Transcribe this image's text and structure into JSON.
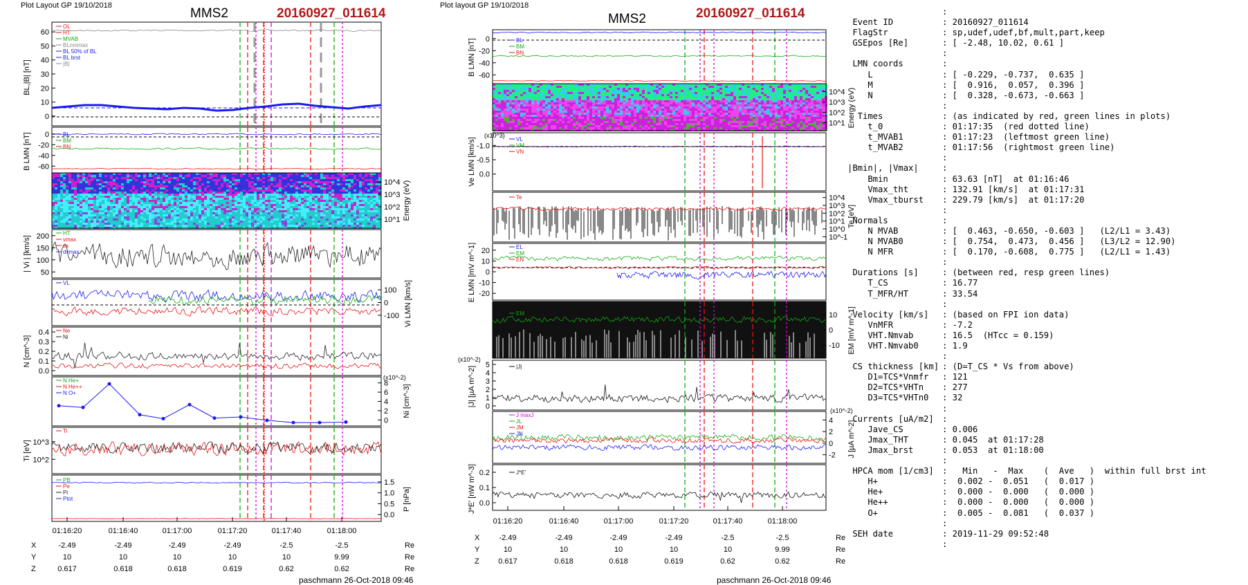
{
  "header": {
    "left_plot_label": "Plot Layout GP 19/10/2018",
    "right_plot_label": "Plot layout GP 19/10/2018",
    "spacecraft": "MMS2",
    "event": "20160927_011614",
    "footer": "paschmann 26-Oct-2018 09:46"
  },
  "colors": {
    "event_red": "#b01818",
    "green": "#11aa11",
    "blue": "#1a1aee",
    "red": "#ee1111",
    "magenta": "#dd00dd"
  },
  "time_axis": {
    "left_ticks": [
      "01:16:20",
      "01:16:40",
      "01:17:00",
      "01:17:20",
      "01:17:40",
      "01:18:00"
    ],
    "right_ticks": [
      "01:16:20",
      "01:16:40",
      "01:17:00",
      "01:17:20",
      "01:17:40",
      "01:18:00"
    ]
  },
  "position_table": {
    "labels": [
      "X",
      "Y",
      "Z"
    ],
    "unit": "Re",
    "X": [
      "-2.49",
      "-2.49",
      "-2.49",
      "-2.49",
      "-2.5",
      "-2.5"
    ],
    "Y": [
      "10",
      "10",
      "10",
      "10",
      "10",
      "9.99"
    ],
    "Z": [
      "0.617",
      "0.618",
      "0.618",
      "0.619",
      "0.62",
      "0.62"
    ]
  },
  "chart_data": [
    {
      "type": "line",
      "panel": "B_L, |B|",
      "ylabel": "BL,|B| [nT]",
      "yticks": [
        "0",
        "10",
        "20",
        "30",
        "40",
        "50",
        "60"
      ],
      "legend": [
        "OL",
        "HT",
        "MVAB",
        "BLmnmax",
        "BL 50% of BL",
        "BL brst",
        "|B|"
      ],
      "series": [
        {
          "name": "|B|",
          "values": [
            63,
            63.5,
            63,
            63.3,
            63,
            62.8,
            63.2
          ]
        },
        {
          "name": "BL",
          "values": [
            8,
            9.5,
            10.5,
            8,
            6.5,
            5,
            11.5,
            7,
            9
          ]
        }
      ]
    },
    {
      "type": "line",
      "panel": "B_LMN",
      "ylabel": "B LMN [nT]",
      "yticks": [
        "0",
        "-20",
        "-40",
        "-60"
      ],
      "legend": [
        "BL",
        "BM",
        "BN"
      ],
      "series": [
        {
          "name": "BL",
          "values": [
            8,
            8,
            7,
            8,
            8
          ]
        },
        {
          "name": "BM",
          "values": [
            -20,
            -21,
            -19,
            -20,
            -20
          ]
        },
        {
          "name": "BN",
          "values": [
            -60,
            -61,
            -60,
            -59,
            -60
          ]
        }
      ]
    },
    {
      "type": "heatmap",
      "panel": "Ion energy spectrogram",
      "ylabel": "Energy (eV)",
      "yticks": [
        "10^4",
        "10^3",
        "10^2",
        "10^1"
      ]
    },
    {
      "type": "line",
      "panel": "|Vi|",
      "ylabel": "| Vi | [km/s]",
      "yticks": [
        "50",
        "100",
        "150",
        "200"
      ],
      "legend": [
        "HT",
        "vmax",
        "ss",
        "dvmax"
      ]
    },
    {
      "type": "line",
      "panel": "Vi LMN",
      "ylabel": "Vi LMN [km/s]",
      "yticks": [
        "100",
        "0",
        "-100"
      ],
      "legend": [
        "VL"
      ]
    },
    {
      "type": "line",
      "panel": "N",
      "ylabel": "N [cm^-3]",
      "yticks": [
        "0.0",
        "0.1",
        "0.2",
        "0.3",
        "0.4"
      ],
      "legend": [
        "Ne",
        "Ni"
      ]
    },
    {
      "type": "line",
      "panel": "HPCA densities",
      "ylabel": "Ni [cm^-3]",
      "scale": "(x10^-2)",
      "yticks": [
        "0",
        "2",
        "4",
        "6",
        "8"
      ],
      "legend": [
        "N He+",
        "N He++",
        "N O+"
      ],
      "series": [
        {
          "name": "N O+",
          "values": [
            3.6,
            3.3,
            7.5,
            2.0,
            1.3,
            3.8,
            1.4,
            1.6,
            1.0,
            0.6,
            0.6,
            0.7
          ]
        }
      ]
    },
    {
      "type": "line",
      "panel": "Ti",
      "ylabel": "Ti [eV]",
      "yticks": [
        "10^3",
        "10^2"
      ],
      "legend": [
        "Ti"
      ]
    },
    {
      "type": "line",
      "panel": "Pressure",
      "ylabel": "P [nPa]",
      "yticks": [
        "0.0",
        "0.5",
        "1.0",
        "1.5"
      ],
      "legend": [
        "PB",
        "Pe",
        "Pi",
        "Ptot"
      ]
    },
    {
      "type": "line",
      "panel": "B_LMN (right)",
      "ylabel": "B LMN [nT]",
      "yticks": [
        "0",
        "-20",
        "-40",
        "-60"
      ],
      "legend": [
        "BL",
        "BM",
        "BN"
      ]
    },
    {
      "type": "heatmap",
      "panel": "Electron energy spectrogram",
      "ylabel": "Energy (eV)",
      "yticks": [
        "10^4",
        "10^3",
        "10^2",
        "10^1"
      ]
    },
    {
      "type": "line",
      "panel": "Ve LMN",
      "ylabel": "Ve LMN [km/s]",
      "scale": "(x10^3)",
      "yticks": [
        "0.0",
        "-0.5",
        "-1.0"
      ],
      "legend": [
        "VL",
        "VM",
        "VN"
      ]
    },
    {
      "type": "line",
      "panel": "Te",
      "ylabel": "Te [eV]",
      "yticks": [
        "10^4",
        "10^3",
        "10^2",
        "10^1",
        "10^0",
        "10^-1"
      ],
      "legend": [
        "Te"
      ]
    },
    {
      "type": "line",
      "panel": "E LMN",
      "ylabel": "E LMN [mV m^-1]",
      "yticks": [
        "20",
        "10",
        "0",
        "-10",
        "-20"
      ],
      "legend": [
        "EL",
        "EM",
        "EN"
      ]
    },
    {
      "type": "line",
      "panel": "EM",
      "ylabel": "EM [mV m^-1]",
      "yticks": [
        "10",
        "0",
        "-10"
      ],
      "legend": [
        "EM"
      ]
    },
    {
      "type": "line",
      "panel": "|J|",
      "ylabel": "|J| [µA m^-2]",
      "scale": "(x10^-2)",
      "yticks": [
        "0",
        "1",
        "2",
        "3",
        "4",
        "5"
      ],
      "legend": [
        "|J|"
      ]
    },
    {
      "type": "line",
      "panel": "J LMN",
      "ylabel": "J [µA m^-2]",
      "scale": "(x10^-2)",
      "yticks": [
        "4",
        "2",
        "0",
        "-2"
      ],
      "legend": [
        "J maxJ",
        "JL",
        "JM",
        "JN"
      ]
    },
    {
      "type": "line",
      "panel": "J*E'",
      "ylabel": "J*E' [nW m^-3]",
      "yticks": [
        "0.2",
        "0.1",
        "0.0"
      ],
      "legend": [
        "J*E'"
      ]
    }
  ],
  "info": {
    "lines": [
      {
        "k": ":",
        "v": ""
      },
      {
        "k": " Event ID",
        "v": ": 20160927_011614"
      },
      {
        "k": " FlagStr",
        "v": ": sp,udef,udef,bf,mult,part,keep"
      },
      {
        "k": " GSEpos [Re]",
        "v": ": [ -2.48, 10.02, 0.61 ]"
      },
      {
        "k": "",
        "v": ":"
      },
      {
        "k": " LMN coords",
        "v": ":"
      },
      {
        "k": "    L",
        "v": ": [ -0.229, -0.737,  0.635 ]"
      },
      {
        "k": "    M",
        "v": ": [  0.916,  0.057,  0.396 ]"
      },
      {
        "k": "    N",
        "v": ": [  0.328, -0.673, -0.663 ]"
      },
      {
        "k": "",
        "v": ":"
      },
      {
        "k": "  Times",
        "v": ": (as indicated by red, green lines in plots)"
      },
      {
        "k": "    t_0",
        "v": ": 01:17:35  (red dotted line)"
      },
      {
        "k": "    t_MVAB1",
        "v": ": 01:17:23  (leftmost green line)"
      },
      {
        "k": "    t_MVAB2",
        "v": ": 01:17:56  (rightmost green line)"
      },
      {
        "k": "",
        "v": ":"
      },
      {
        "k": "|Bmin|, |Vmax|",
        "v": ":"
      },
      {
        "k": "    Bmin",
        "v": ": 63.63 [nT]  at 01:16:46"
      },
      {
        "k": "    Vmax_tht",
        "v": ": 132.91 [km/s]  at 01:17:31"
      },
      {
        "k": "    Vmax_tburst",
        "v": ": 229.79 [km/s]  at 01:17:20"
      },
      {
        "k": "",
        "v": ":"
      },
      {
        "k": " Normals",
        "v": ":"
      },
      {
        "k": "    N MVAB",
        "v": ": [  0.463, -0.650, -0.603 ]   (L2/L1 = 3.43)"
      },
      {
        "k": "    N MVAB0",
        "v": ": [  0.754,  0.473,  0.456 ]   (L3/L2 = 12.90)"
      },
      {
        "k": "    N MFR",
        "v": ": [  0.170, -0.608,  0.775 ]   (L2/L1 = 1.43)"
      },
      {
        "k": "",
        "v": ":"
      },
      {
        "k": " Durations [s]",
        "v": ": (between red, resp green lines)"
      },
      {
        "k": "    T_CS",
        "v": ": 16.77"
      },
      {
        "k": "    T_MFR/HT",
        "v": ": 33.54"
      },
      {
        "k": "",
        "v": ":"
      },
      {
        "k": " Velocity [km/s]",
        "v": ": (based on FPI ion data)"
      },
      {
        "k": "    VnMFR",
        "v": ": -7.2"
      },
      {
        "k": "    VHT.Nmvab",
        "v": ": 16.5  (HTcc = 0.159)"
      },
      {
        "k": "    VHT.Nmvab0",
        "v": ": 1.9"
      },
      {
        "k": "",
        "v": ":"
      },
      {
        "k": " CS thickness [km]",
        "v": ": (D=T_CS * Vs from above)"
      },
      {
        "k": "    D1=TCS*Vnmfr",
        "v": ": 121"
      },
      {
        "k": "    D2=TCS*VHTn",
        "v": ": 277"
      },
      {
        "k": "    D3=TCS*VHTn0",
        "v": ": 32"
      },
      {
        "k": "",
        "v": ":"
      },
      {
        "k": " Currents [uA/m2]",
        "v": ":"
      },
      {
        "k": "    Jave_CS",
        "v": ": 0.006"
      },
      {
        "k": "    Jmax_THT",
        "v": ": 0.045  at 01:17:28"
      },
      {
        "k": "    Jmax_brst",
        "v": ": 0.053  at 01:18:00"
      },
      {
        "k": "",
        "v": ":"
      },
      {
        "k": " HPCA mom [1/cm3]",
        "v": ":   Min   -  Max    (  Ave   )  within full brst int"
      },
      {
        "k": "    H+",
        "v": ":  0.002 -  0.051   (  0.017 )"
      },
      {
        "k": "    He+",
        "v": ":  0.000 -  0.000   (  0.000 )"
      },
      {
        "k": "    He++",
        "v": ":  0.000 -  0.000   (  0.000 )"
      },
      {
        "k": "    O+",
        "v": ":  0.005 -  0.081   (  0.037 )"
      },
      {
        "k": "",
        "v": ":"
      },
      {
        "k": " SEH date",
        "v": ": 2019-11-29 09:52:48"
      },
      {
        "k": "",
        "v": ":"
      }
    ]
  }
}
